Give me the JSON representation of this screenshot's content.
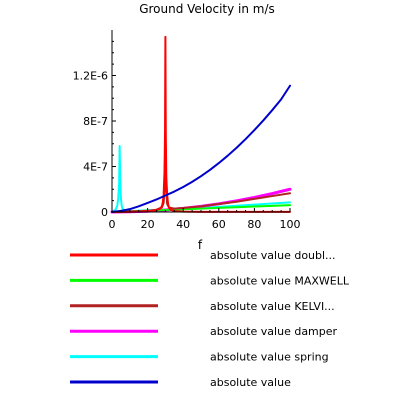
{
  "chart_data": {
    "type": "line",
    "title": "Ground Velocity in m/s",
    "xlabel": "f",
    "ylabel": "",
    "xlim": [
      0,
      100
    ],
    "ylim": [
      0,
      1.6e-06
    ],
    "x_ticks": [
      0,
      20,
      40,
      60,
      80,
      100
    ],
    "x_tick_labels": [
      "0",
      "20",
      "40",
      "60",
      "80",
      "100"
    ],
    "y_ticks": [
      0,
      4e-07,
      8e-07,
      1.2e-06
    ],
    "y_tick_labels": [
      "0",
      "4E-7",
      "8E-7",
      "1.2E-6"
    ],
    "grid": false,
    "legend_position": "bottom",
    "series": [
      {
        "name": "absolute value doubl...",
        "color": "#ff0000",
        "x": [
          0,
          10,
          20,
          25,
          27,
          28,
          28.5,
          29,
          29.5,
          29.8,
          30,
          30.2,
          30.5,
          31,
          31.5,
          32,
          33,
          35,
          40,
          50,
          60,
          80,
          100
        ],
        "y": [
          0,
          2e-09,
          6e-09,
          1.5e-08,
          3e-08,
          5e-08,
          8e-08,
          1.5e-07,
          3.5e-07,
          7e-07,
          1.54e-06,
          7e-07,
          3e-07,
          1.5e-07,
          7e-08,
          4e-08,
          2e-08,
          8e-09,
          3e-09,
          1e-09,
          1e-09,
          1e-09,
          1e-09
        ]
      },
      {
        "name": "absolute value MAXWELL",
        "color": "#00ff00",
        "x": [
          0,
          10,
          20,
          30,
          40,
          50,
          60,
          70,
          80,
          90,
          100
        ],
        "y": [
          0,
          6e-09,
          1.2e-08,
          1.8e-08,
          2.4e-08,
          3e-08,
          3.6e-08,
          4.2e-08,
          4.8e-08,
          5.4e-08,
          6e-08
        ]
      },
      {
        "name": "absolute value KELVI...",
        "color": "#b22222",
        "x": [
          0,
          10,
          20,
          25,
          28,
          29,
          29.5,
          30,
          30.5,
          31,
          32,
          35,
          40,
          50,
          60,
          70,
          80,
          90,
          100
        ],
        "y": [
          0,
          3e-09,
          1e-08,
          2e-08,
          4e-08,
          8e-08,
          2e-07,
          6.5e-07,
          2e-07,
          7e-08,
          4e-08,
          3e-08,
          3.5e-08,
          5e-08,
          7e-08,
          9e-08,
          1.15e-07,
          1.4e-07,
          1.65e-07
        ]
      },
      {
        "name": "absolute value damper",
        "color": "#ff00ff",
        "x": [
          0,
          10,
          20,
          30,
          40,
          50,
          60,
          70,
          80,
          90,
          100
        ],
        "y": [
          0,
          2e-09,
          7e-09,
          1.8e-08,
          3.2e-08,
          5e-08,
          7.2e-08,
          9.8e-08,
          1.28e-07,
          1.62e-07,
          2e-07
        ]
      },
      {
        "name": "absolute value spring",
        "color": "#00ffff",
        "x": [
          0,
          2,
          3,
          3.5,
          4,
          4.3,
          4.6,
          5,
          5.5,
          6,
          7,
          10,
          20,
          30,
          40,
          50,
          60,
          70,
          80,
          90,
          100
        ],
        "y": [
          0,
          2e-08,
          6e-08,
          1.2e-07,
          2.5e-07,
          5.8e-07,
          3e-07,
          1.2e-07,
          5e-08,
          3e-08,
          1.5e-08,
          8e-09,
          1.5e-08,
          2e-08,
          2.8e-08,
          3.5e-08,
          4.5e-08,
          5.5e-08,
          6.5e-08,
          7.5e-08,
          8.5e-08
        ]
      },
      {
        "name": "absolute value",
        "color": "#0000cd",
        "x": [
          0,
          5,
          10,
          15,
          20,
          25,
          30,
          35,
          40,
          45,
          50,
          55,
          60,
          65,
          70,
          75,
          80,
          85,
          90,
          95,
          100
        ],
        "y": [
          0,
          1e-08,
          2.5e-08,
          5e-08,
          8e-08,
          1.1e-07,
          1.45e-07,
          1.8e-07,
          2.2e-07,
          2.65e-07,
          3.15e-07,
          3.7e-07,
          4.3e-07,
          4.95e-07,
          5.65e-07,
          6.4e-07,
          7.2e-07,
          8.05e-07,
          8.95e-07,
          9.9e-07,
          1.11e-06
        ]
      }
    ]
  }
}
